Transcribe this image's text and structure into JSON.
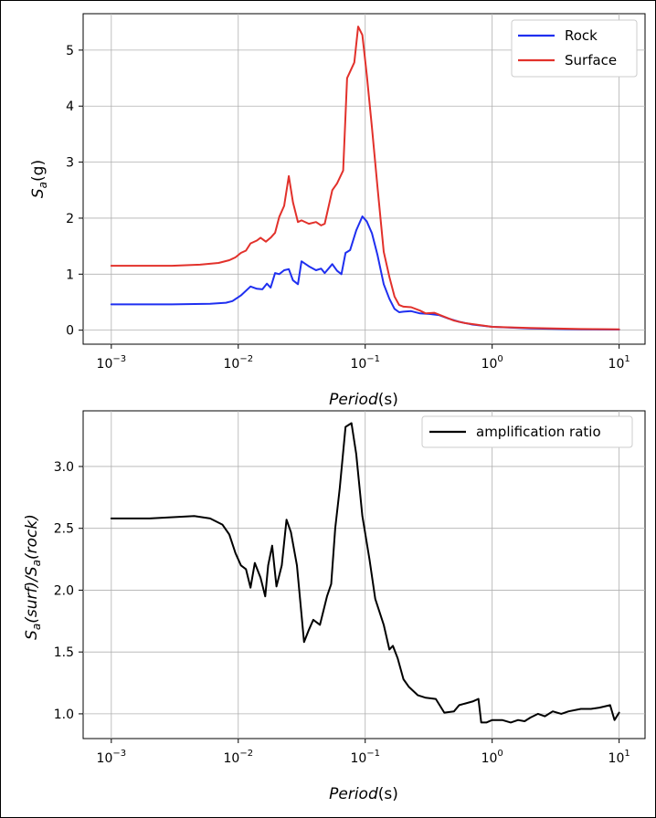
{
  "chart_data": [
    {
      "type": "line",
      "x_scale": "log",
      "xlim": [
        0.0006,
        16
      ],
      "ylim": [
        -0.25,
        5.65
      ],
      "xticks": [
        {
          "value": 0.001,
          "base": "10",
          "exp": "−3"
        },
        {
          "value": 0.01,
          "base": "10",
          "exp": "−2"
        },
        {
          "value": 0.1,
          "base": "10",
          "exp": "−1"
        },
        {
          "value": 1,
          "base": "10",
          "exp": "0"
        },
        {
          "value": 10,
          "base": "10",
          "exp": "1"
        }
      ],
      "yticks": [
        {
          "value": 0,
          "label": "0"
        },
        {
          "value": 1,
          "label": "1"
        },
        {
          "value": 2,
          "label": "2"
        },
        {
          "value": 3,
          "label": "3"
        },
        {
          "value": 4,
          "label": "4"
        },
        {
          "value": 5,
          "label": "5"
        }
      ],
      "xlabel": {
        "main": "Period",
        "paren": "(s)"
      },
      "ylabel": {
        "main": "S",
        "sub": "a",
        "paren": "(g)"
      },
      "grid": true,
      "legend_position": "top-right",
      "series": [
        {
          "name": "Rock",
          "color": "#1f2ff0",
          "points": [
            [
              0.001,
              0.46
            ],
            [
              0.003,
              0.46
            ],
            [
              0.006,
              0.47
            ],
            [
              0.008,
              0.49
            ],
            [
              0.009,
              0.52
            ],
            [
              0.0105,
              0.62
            ],
            [
              0.0125,
              0.78
            ],
            [
              0.014,
              0.74
            ],
            [
              0.0155,
              0.73
            ],
            [
              0.0168,
              0.83
            ],
            [
              0.018,
              0.76
            ],
            [
              0.0195,
              1.02
            ],
            [
              0.021,
              1.0
            ],
            [
              0.023,
              1.07
            ],
            [
              0.025,
              1.09
            ],
            [
              0.027,
              0.89
            ],
            [
              0.0295,
              0.82
            ],
            [
              0.0315,
              1.23
            ],
            [
              0.036,
              1.14
            ],
            [
              0.041,
              1.07
            ],
            [
              0.045,
              1.1
            ],
            [
              0.048,
              1.02
            ],
            [
              0.055,
              1.18
            ],
            [
              0.06,
              1.06
            ],
            [
              0.065,
              1.0
            ],
            [
              0.07,
              1.38
            ],
            [
              0.076,
              1.43
            ],
            [
              0.085,
              1.78
            ],
            [
              0.095,
              2.03
            ],
            [
              0.103,
              1.94
            ],
            [
              0.113,
              1.73
            ],
            [
              0.125,
              1.34
            ],
            [
              0.14,
              0.82
            ],
            [
              0.155,
              0.56
            ],
            [
              0.17,
              0.38
            ],
            [
              0.185,
              0.32
            ],
            [
              0.2,
              0.33
            ],
            [
              0.23,
              0.34
            ],
            [
              0.27,
              0.3
            ],
            [
              0.32,
              0.29
            ],
            [
              0.38,
              0.27
            ],
            [
              0.45,
              0.21
            ],
            [
              0.55,
              0.15
            ],
            [
              0.7,
              0.1
            ],
            [
              1.0,
              0.06
            ],
            [
              2.0,
              0.03
            ],
            [
              5.0,
              0.015
            ],
            [
              10.0,
              0.01
            ]
          ]
        },
        {
          "name": "Surface",
          "color": "#e2312b",
          "points": [
            [
              0.001,
              1.15
            ],
            [
              0.003,
              1.15
            ],
            [
              0.005,
              1.17
            ],
            [
              0.007,
              1.2
            ],
            [
              0.0085,
              1.25
            ],
            [
              0.0095,
              1.3
            ],
            [
              0.0105,
              1.38
            ],
            [
              0.0115,
              1.42
            ],
            [
              0.0125,
              1.55
            ],
            [
              0.014,
              1.6
            ],
            [
              0.015,
              1.65
            ],
            [
              0.0165,
              1.58
            ],
            [
              0.018,
              1.65
            ],
            [
              0.0195,
              1.74
            ],
            [
              0.021,
              2.02
            ],
            [
              0.023,
              2.22
            ],
            [
              0.025,
              2.75
            ],
            [
              0.027,
              2.28
            ],
            [
              0.0295,
              1.93
            ],
            [
              0.0315,
              1.96
            ],
            [
              0.036,
              1.9
            ],
            [
              0.041,
              1.93
            ],
            [
              0.045,
              1.87
            ],
            [
              0.048,
              1.9
            ],
            [
              0.055,
              2.5
            ],
            [
              0.06,
              2.62
            ],
            [
              0.067,
              2.85
            ],
            [
              0.072,
              4.5
            ],
            [
              0.082,
              4.78
            ],
            [
              0.088,
              5.42
            ],
            [
              0.095,
              5.27
            ],
            [
              0.103,
              4.55
            ],
            [
              0.113,
              3.62
            ],
            [
              0.125,
              2.55
            ],
            [
              0.14,
              1.4
            ],
            [
              0.155,
              0.95
            ],
            [
              0.17,
              0.6
            ],
            [
              0.185,
              0.45
            ],
            [
              0.2,
              0.42
            ],
            [
              0.23,
              0.41
            ],
            [
              0.27,
              0.35
            ],
            [
              0.3,
              0.3
            ],
            [
              0.35,
              0.31
            ],
            [
              0.42,
              0.24
            ],
            [
              0.5,
              0.17
            ],
            [
              0.6,
              0.13
            ],
            [
              0.8,
              0.09
            ],
            [
              1.0,
              0.06
            ],
            [
              2.0,
              0.04
            ],
            [
              5.0,
              0.02
            ],
            [
              10.0,
              0.015
            ]
          ]
        }
      ]
    },
    {
      "type": "line",
      "x_scale": "log",
      "xlim": [
        0.0006,
        16
      ],
      "ylim": [
        0.8,
        3.45
      ],
      "xticks": [
        {
          "value": 0.001,
          "base": "10",
          "exp": "−3"
        },
        {
          "value": 0.01,
          "base": "10",
          "exp": "−2"
        },
        {
          "value": 0.1,
          "base": "10",
          "exp": "−1"
        },
        {
          "value": 1,
          "base": "10",
          "exp": "0"
        },
        {
          "value": 10,
          "base": "10",
          "exp": "1"
        }
      ],
      "yticks": [
        {
          "value": 1.0,
          "label": "1.0"
        },
        {
          "value": 1.5,
          "label": "1.5"
        },
        {
          "value": 2.0,
          "label": "2.0"
        },
        {
          "value": 2.5,
          "label": "2.5"
        },
        {
          "value": 3.0,
          "label": "3.0"
        }
      ],
      "xlabel": {
        "main": "Period",
        "paren": "(s)"
      },
      "ylabel": {
        "s1": "S",
        "sub1": "a",
        "mid": "(surf)/S",
        "sub2": "a",
        "tail": "(rock)"
      },
      "grid": true,
      "legend_position": "top-right",
      "series": [
        {
          "name": "amplification ratio",
          "color": "#000000",
          "points": [
            [
              0.001,
              2.58
            ],
            [
              0.002,
              2.58
            ],
            [
              0.0045,
              2.6
            ],
            [
              0.006,
              2.58
            ],
            [
              0.0075,
              2.53
            ],
            [
              0.0085,
              2.45
            ],
            [
              0.0095,
              2.3
            ],
            [
              0.0105,
              2.2
            ],
            [
              0.0115,
              2.17
            ],
            [
              0.0125,
              2.02
            ],
            [
              0.0135,
              2.22
            ],
            [
              0.015,
              2.1
            ],
            [
              0.0163,
              1.95
            ],
            [
              0.0172,
              2.2
            ],
            [
              0.0185,
              2.36
            ],
            [
              0.02,
              2.03
            ],
            [
              0.022,
              2.2
            ],
            [
              0.024,
              2.57
            ],
            [
              0.026,
              2.47
            ],
            [
              0.029,
              2.2
            ],
            [
              0.033,
              1.58
            ],
            [
              0.036,
              1.68
            ],
            [
              0.039,
              1.76
            ],
            [
              0.044,
              1.72
            ],
            [
              0.05,
              1.95
            ],
            [
              0.054,
              2.05
            ],
            [
              0.058,
              2.5
            ],
            [
              0.063,
              2.82
            ],
            [
              0.07,
              3.32
            ],
            [
              0.078,
              3.35
            ],
            [
              0.085,
              3.1
            ],
            [
              0.095,
              2.6
            ],
            [
              0.108,
              2.25
            ],
            [
              0.12,
              1.93
            ],
            [
              0.14,
              1.72
            ],
            [
              0.155,
              1.52
            ],
            [
              0.165,
              1.55
            ],
            [
              0.18,
              1.45
            ],
            [
              0.2,
              1.28
            ],
            [
              0.22,
              1.22
            ],
            [
              0.26,
              1.15
            ],
            [
              0.3,
              1.13
            ],
            [
              0.36,
              1.12
            ],
            [
              0.42,
              1.01
            ],
            [
              0.5,
              1.02
            ],
            [
              0.55,
              1.07
            ],
            [
              0.7,
              1.1
            ],
            [
              0.78,
              1.12
            ],
            [
              0.82,
              0.93
            ],
            [
              0.9,
              0.93
            ],
            [
              1.0,
              0.95
            ],
            [
              1.2,
              0.95
            ],
            [
              1.4,
              0.93
            ],
            [
              1.6,
              0.95
            ],
            [
              1.8,
              0.94
            ],
            [
              2.0,
              0.97
            ],
            [
              2.3,
              1.0
            ],
            [
              2.6,
              0.98
            ],
            [
              3.0,
              1.02
            ],
            [
              3.5,
              1.0
            ],
            [
              4.0,
              1.02
            ],
            [
              5.0,
              1.04
            ],
            [
              6.0,
              1.04
            ],
            [
              7.0,
              1.05
            ],
            [
              8.5,
              1.07
            ],
            [
              9.2,
              0.95
            ],
            [
              10.0,
              1.01
            ]
          ]
        }
      ]
    }
  ]
}
